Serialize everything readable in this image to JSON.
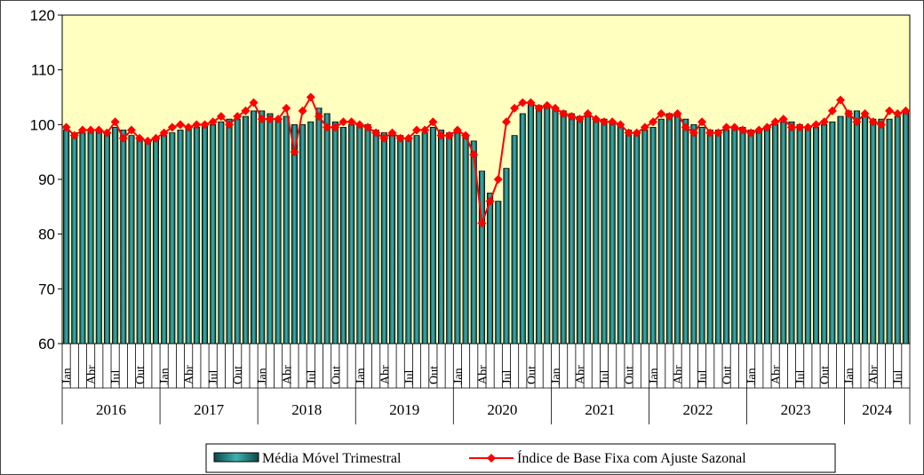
{
  "chart_data": {
    "type": "bar_line",
    "categories": [
      "Jan",
      null,
      null,
      "Abr",
      null,
      null,
      "Jul",
      null,
      null,
      "Out",
      null,
      null,
      "Jan",
      null,
      null,
      "Abr",
      null,
      null,
      "Jul",
      null,
      null,
      "Out",
      null,
      null,
      "Jan",
      null,
      null,
      "Abr",
      null,
      null,
      "Jul",
      null,
      null,
      "Out",
      null,
      null,
      "Jan",
      null,
      null,
      "Abr",
      null,
      null,
      "Jul",
      null,
      null,
      "Out",
      null,
      null,
      "Jan",
      null,
      null,
      "Abr",
      null,
      null,
      "Jul",
      null,
      null,
      "Out",
      null,
      null,
      "Jan",
      null,
      null,
      "Abr",
      null,
      null,
      "Jul",
      null,
      null,
      "Out",
      null,
      null,
      "Jan",
      null,
      null,
      "Abr",
      null,
      null,
      "Jul",
      null,
      null,
      "Out",
      null,
      null,
      "Jan",
      null,
      null,
      "Abr",
      null,
      null,
      "Jul",
      null,
      null,
      "Out",
      null,
      null,
      "Jan",
      null,
      null,
      "Abr",
      null,
      null,
      "Jul",
      null
    ],
    "years": [
      "2016",
      "2017",
      "2018",
      "2019",
      "2020",
      "2021",
      "2022",
      "2023",
      "2024"
    ],
    "series": [
      {
        "name": "Média Móvel Trimestral",
        "kind": "bar",
        "color": "#2a8c8c",
        "values": [
          99,
          98.5,
          98.5,
          99,
          99,
          98.5,
          99.5,
          99,
          98,
          97.5,
          97,
          97.5,
          98,
          98.5,
          99,
          99.5,
          99.5,
          100,
          100,
          100.5,
          101,
          101,
          101.5,
          102.5,
          102.5,
          102,
          101,
          101.5,
          100,
          100,
          100.5,
          103,
          102,
          100.5,
          99.5,
          100,
          100,
          100,
          99,
          98.5,
          98,
          98,
          97.5,
          98,
          98.5,
          99.5,
          99,
          98.5,
          98.5,
          98,
          97,
          91.5,
          87.5,
          86,
          92,
          98,
          102,
          104,
          103.5,
          103.5,
          103,
          102.5,
          102,
          101.5,
          101.5,
          101,
          101,
          100.5,
          100,
          99,
          98.5,
          99,
          99.5,
          101,
          102,
          102,
          101,
          100,
          99.5,
          99,
          99,
          99,
          99.5,
          99.5,
          99,
          99,
          99.5,
          100,
          100.5,
          100.5,
          100,
          99.5,
          99.5,
          100,
          100.5,
          101.5,
          102.5,
          102.5,
          101.5,
          101,
          101,
          101,
          101.5,
          102.5
        ]
      },
      {
        "name": "Índice de Base Fixa com Ajuste Sazonal",
        "kind": "line",
        "color": "#ff0000",
        "values": [
          99.5,
          98,
          99,
          99,
          99,
          98.5,
          100.5,
          97.5,
          99,
          97.5,
          97,
          97.5,
          98.5,
          99.5,
          100,
          99.5,
          100,
          100,
          100.5,
          101.5,
          100,
          101.5,
          102.5,
          104,
          101,
          101,
          101,
          103,
          95,
          102.5,
          105,
          101.5,
          99.5,
          99.5,
          100.5,
          100.5,
          100,
          99.5,
          98.5,
          97.5,
          98.5,
          97.5,
          97.5,
          99,
          99,
          100.5,
          98,
          98,
          99,
          98,
          94.5,
          82,
          86,
          90,
          100.5,
          103,
          104,
          104,
          103,
          103.5,
          103,
          102,
          101.5,
          101,
          102,
          101,
          100.5,
          100.5,
          100,
          98.5,
          98.5,
          99.5,
          100.5,
          102,
          101.5,
          102,
          99.5,
          98.5,
          100.5,
          98.5,
          98.5,
          99.5,
          99.5,
          99,
          98.5,
          99,
          99.5,
          100.5,
          101,
          99.5,
          99.5,
          99.5,
          100,
          100.5,
          102.5,
          104.5,
          102,
          100.5,
          102,
          100.5,
          100,
          102.5,
          102,
          102.5
        ]
      }
    ],
    "ylim": [
      60,
      120
    ],
    "yticks": [
      60,
      70,
      80,
      90,
      100,
      110,
      120
    ]
  }
}
